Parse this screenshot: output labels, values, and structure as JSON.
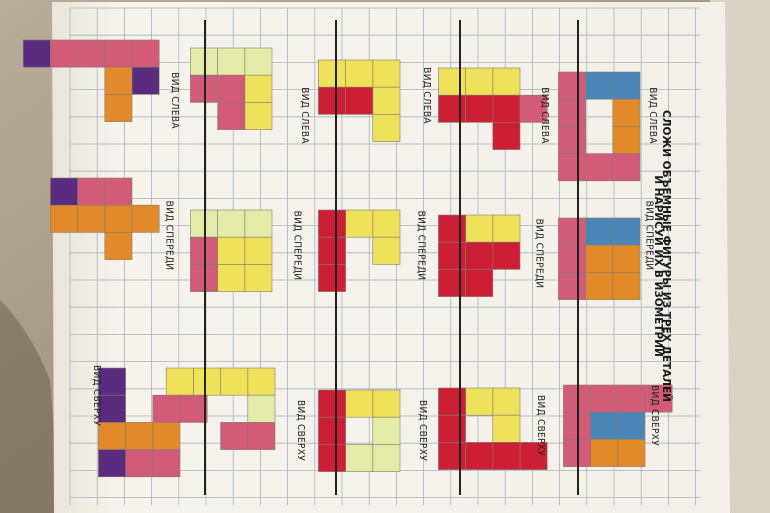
{
  "title": {
    "line1": "СЛОЖИ ОБЪЕМНЫЕ ФИГУРЫ ИЗ ТРЕХ ДЕТАЛЕЙ",
    "line2": "И НАРИСУЙ ИХ В ИЗОМЕТРИИ"
  },
  "views": {
    "left": "ВИД СЛЕВА",
    "front": "ВИД СПЕРЕДИ",
    "top": "ВИД СВЕРХУ"
  },
  "colors": {
    "pink": "#d35b7a",
    "red": "#cc1f36",
    "orange": "#e28a2a",
    "yellow": "#ede25a",
    "pale_yellow": "#e3eba8",
    "blue": "#4a86b7",
    "purple": "#5a2c80",
    "page": "#f4f2ea",
    "grid": "#a7b4c2"
  },
  "puzzles": [
    {
      "left": [
        [
          "orange",
          1,
          1
        ],
        [
          "orange",
          2,
          1
        ],
        [
          "blue",
          0,
          1
        ],
        [
          "blue",
          0,
          2
        ],
        [
          "pink",
          0,
          3
        ],
        [
          "pink",
          1,
          3
        ],
        [
          "pink",
          2,
          3
        ],
        [
          "pink",
          3,
          3
        ],
        [
          "pink",
          3,
          2
        ],
        [
          "pink",
          3,
          1
        ]
      ],
      "front": [
        [
          "blue",
          0,
          1
        ],
        [
          "blue",
          0,
          2
        ],
        [
          "orange",
          1,
          1
        ],
        [
          "orange",
          2,
          1
        ],
        [
          "orange",
          1,
          2
        ],
        [
          "orange",
          2,
          2
        ],
        [
          "pink",
          0,
          3
        ],
        [
          "pink",
          1,
          3
        ],
        [
          "pink",
          2,
          3
        ]
      ],
      "top": [
        [
          "blue",
          1,
          1
        ],
        [
          "blue",
          1,
          2
        ],
        [
          "orange",
          2,
          1
        ],
        [
          "orange",
          2,
          2
        ],
        [
          "pink",
          0,
          0
        ],
        [
          "pink",
          0,
          1
        ],
        [
          "pink",
          0,
          2
        ],
        [
          "pink",
          0,
          3
        ],
        [
          "pink",
          1,
          3
        ],
        [
          "pink",
          2,
          3
        ]
      ]
    },
    {
      "left": [
        [
          "yellow",
          0,
          1
        ],
        [
          "yellow",
          0,
          2
        ],
        [
          "yellow",
          0,
          3
        ],
        [
          "red",
          1,
          1
        ],
        [
          "red",
          2,
          1
        ],
        [
          "red",
          1,
          2
        ],
        [
          "red",
          1,
          3
        ],
        [
          "pink",
          1,
          0
        ]
      ],
      "front": [
        [
          "yellow",
          0,
          1
        ],
        [
          "yellow",
          0,
          2
        ],
        [
          "red",
          1,
          1
        ],
        [
          "red",
          1,
          2
        ],
        [
          "red",
          2,
          2
        ],
        [
          "red",
          0,
          3
        ],
        [
          "red",
          1,
          3
        ],
        [
          "red",
          2,
          3
        ]
      ],
      "top": [
        [
          "yellow",
          0,
          1
        ],
        [
          "yellow",
          1,
          1
        ],
        [
          "yellow",
          0,
          2
        ],
        [
          "red",
          2,
          0
        ],
        [
          "red",
          2,
          1
        ],
        [
          "red",
          2,
          2
        ],
        [
          "red",
          0,
          3
        ],
        [
          "red",
          1,
          3
        ],
        [
          "red",
          2,
          3
        ]
      ]
    },
    {
      "left": [
        [
          "yellow",
          0,
          1
        ],
        [
          "yellow",
          1,
          1
        ],
        [
          "yellow",
          2,
          1
        ],
        [
          "yellow",
          0,
          2
        ],
        [
          "yellow",
          0,
          3
        ],
        [
          "red",
          1,
          2
        ],
        [
          "red",
          1,
          3
        ]
      ],
      "front": [
        [
          "yellow",
          0,
          1
        ],
        [
          "yellow",
          1,
          1
        ],
        [
          "yellow",
          0,
          2
        ],
        [
          "red",
          0,
          3
        ],
        [
          "red",
          1,
          3
        ],
        [
          "red",
          2,
          3
        ]
      ],
      "top": [
        [
          "yellow",
          0,
          1
        ],
        [
          "yellow",
          0,
          2
        ],
        [
          "pale_yellow",
          1,
          1
        ],
        [
          "pale_yellow",
          2,
          1
        ],
        [
          "pale_yellow",
          2,
          2
        ],
        [
          "red",
          0,
          3
        ],
        [
          "red",
          1,
          3
        ],
        [
          "red",
          2,
          3
        ]
      ]
    },
    {
      "left": [
        [
          "pale_yellow",
          0,
          1
        ],
        [
          "pale_yellow",
          0,
          2
        ],
        [
          "pale_yellow",
          0,
          3
        ],
        [
          "yellow",
          1,
          1
        ],
        [
          "yellow",
          2,
          1
        ],
        [
          "pink",
          1,
          2
        ],
        [
          "pink",
          2,
          2
        ],
        [
          "pink",
          1,
          3
        ]
      ],
      "front": [
        [
          "pale_yellow",
          0,
          1
        ],
        [
          "pale_yellow",
          0,
          2
        ],
        [
          "pale_yellow",
          0,
          3
        ],
        [
          "yellow",
          1,
          1
        ],
        [
          "yellow",
          2,
          1
        ],
        [
          "yellow",
          1,
          2
        ],
        [
          "yellow",
          2,
          2
        ],
        [
          "pink",
          1,
          3
        ],
        [
          "pink",
          2,
          3
        ]
      ],
      "top": [
        [
          "yellow",
          0,
          1
        ],
        [
          "yellow",
          0,
          2
        ],
        [
          "yellow",
          0,
          3
        ],
        [
          "yellow",
          0,
          4
        ],
        [
          "pale_yellow",
          1,
          1
        ],
        [
          "pink",
          2,
          1
        ],
        [
          "pink",
          2,
          2
        ]
      ]
    },
    {
      "left": [
        [
          "pink",
          0,
          0
        ],
        [
          "pink",
          0,
          1
        ],
        [
          "pink",
          0,
          2
        ],
        [
          "pink",
          0,
          3
        ],
        [
          "purple",
          1,
          0
        ],
        [
          "orange",
          1,
          1
        ],
        [
          "orange",
          2,
          1
        ],
        [
          "purple",
          0,
          4
        ]
      ],
      "front": [
        [
          "pink",
          0,
          1
        ],
        [
          "pink",
          0,
          2
        ],
        [
          "orange",
          1,
          1
        ],
        [
          "orange",
          1,
          2
        ],
        [
          "orange",
          2,
          1
        ],
        [
          "orange",
          1,
          0
        ],
        [
          "orange",
          1,
          3
        ],
        [
          "purple",
          0,
          3
        ]
      ],
      "top": [
        [
          "pink",
          1,
          0
        ],
        [
          "pink",
          1,
          1
        ],
        [
          "orange",
          2,
          1
        ],
        [
          "orange",
          2,
          2
        ],
        [
          "orange",
          2,
          3
        ],
        [
          "pink",
          3,
          1
        ],
        [
          "pink",
          3,
          2
        ],
        [
          "purple",
          0,
          3
        ],
        [
          "purple",
          1,
          3
        ],
        [
          "purple",
          3,
          3
        ]
      ]
    }
  ]
}
